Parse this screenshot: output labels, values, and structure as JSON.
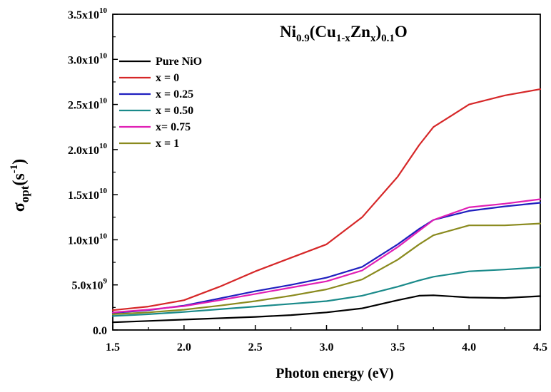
{
  "chart_data": {
    "type": "line",
    "title": "Ni0.9(Cu1-xZnx)0.1O",
    "xlabel": "Photon energy (eV)",
    "ylabel": "σopt(s-1)",
    "xlim": [
      1.5,
      4.5
    ],
    "ylim": [
      0,
      35000000000.0
    ],
    "grid": false,
    "legend_position": "top-left",
    "x_ticks": [
      {
        "value": 1.5,
        "label": "1.5"
      },
      {
        "value": 2.0,
        "label": "2.0"
      },
      {
        "value": 2.5,
        "label": "2.5"
      },
      {
        "value": 3.0,
        "label": "3.0"
      },
      {
        "value": 3.5,
        "label": "3.5"
      },
      {
        "value": 4.0,
        "label": "4.0"
      },
      {
        "value": 4.5,
        "label": "4.5"
      }
    ],
    "y_ticks": [
      {
        "value": 0,
        "mant": "0.0",
        "exp": ""
      },
      {
        "value": 5000000000.0,
        "mant": "5.0x10",
        "exp": "9"
      },
      {
        "value": 10000000000.0,
        "mant": "1.0x10",
        "exp": "10"
      },
      {
        "value": 15000000000.0,
        "mant": "1.5x10",
        "exp": "10"
      },
      {
        "value": 20000000000.0,
        "mant": "2.0x10",
        "exp": "10"
      },
      {
        "value": 25000000000.0,
        "mant": "2.5x10",
        "exp": "10"
      },
      {
        "value": 30000000000.0,
        "mant": "3.0x10",
        "exp": "10"
      },
      {
        "value": 35000000000.0,
        "mant": "3.5x10",
        "exp": "10"
      }
    ],
    "x": [
      1.5,
      1.75,
      2.0,
      2.25,
      2.5,
      2.75,
      3.0,
      3.25,
      3.5,
      3.65,
      3.75,
      4.0,
      4.25,
      4.5
    ],
    "series": [
      {
        "name": "Pure NiO",
        "color": "#000000",
        "values": [
          850000000.0,
          1000000000.0,
          1150000000.0,
          1300000000.0,
          1450000000.0,
          1650000000.0,
          1950000000.0,
          2400000000.0,
          3300000000.0,
          3800000000.0,
          3850000000.0,
          3600000000.0,
          3550000000.0,
          3750000000.0
        ]
      },
      {
        "name": "x = 0",
        "color": "#d62728",
        "values": [
          2200000000.0,
          2600000000.0,
          3300000000.0,
          4800000000.0,
          6500000000.0,
          8000000000.0,
          9500000000.0,
          12500000000.0,
          17000000000.0,
          20500000000.0,
          22500000000.0,
          25000000000.0,
          26000000000.0,
          26700000000.0
        ]
      },
      {
        "name": "x = 0.25",
        "color": "#1f1fbf",
        "values": [
          1900000000.0,
          2200000000.0,
          2700000000.0,
          3500000000.0,
          4300000000.0,
          5000000000.0,
          5800000000.0,
          7000000000.0,
          9500000000.0,
          11200000000.0,
          12200000000.0,
          13200000000.0,
          13700000000.0,
          14100000000.0
        ]
      },
      {
        "name": "x = 0.50",
        "color": "#1a8a8a",
        "values": [
          1550000000.0,
          1750000000.0,
          2000000000.0,
          2300000000.0,
          2600000000.0,
          2900000000.0,
          3200000000.0,
          3800000000.0,
          4800000000.0,
          5500000000.0,
          5900000000.0,
          6500000000.0,
          6700000000.0,
          6950000000.0
        ]
      },
      {
        "name": "x= 0.75",
        "color": "#e01eb4",
        "values": [
          1950000000.0,
          2250000000.0,
          2650000000.0,
          3300000000.0,
          4000000000.0,
          4700000000.0,
          5400000000.0,
          6600000000.0,
          9200000000.0,
          11000000000.0,
          12200000000.0,
          13600000000.0,
          14000000000.0,
          14500000000.0
        ]
      },
      {
        "name": "x = 1",
        "color": "#8a8a1e",
        "values": [
          1750000000.0,
          1950000000.0,
          2250000000.0,
          2700000000.0,
          3200000000.0,
          3800000000.0,
          4500000000.0,
          5600000000.0,
          7800000000.0,
          9500000000.0,
          10500000000.0,
          11600000000.0,
          11600000000.0,
          11800000000.0
        ]
      }
    ]
  }
}
